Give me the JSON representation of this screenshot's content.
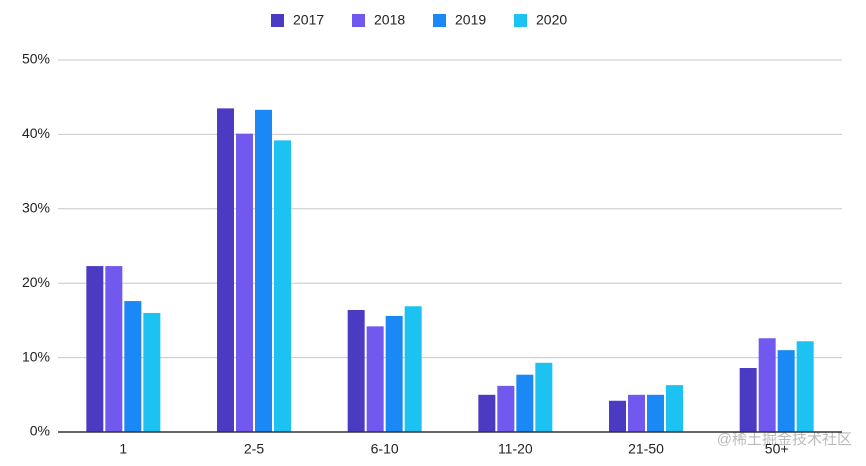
{
  "chart_data": {
    "type": "bar",
    "categories": [
      "1",
      "2-5",
      "6-10",
      "11-20",
      "21-50",
      "50+"
    ],
    "series": [
      {
        "name": "2017",
        "color": "#4b3bc2",
        "values": [
          22.3,
          43.5,
          16.4,
          5.0,
          4.2,
          8.6
        ]
      },
      {
        "name": "2018",
        "color": "#7159f0",
        "values": [
          22.3,
          40.1,
          14.2,
          6.2,
          5.0,
          12.6
        ]
      },
      {
        "name": "2019",
        "color": "#1a88f5",
        "values": [
          17.6,
          43.3,
          15.6,
          7.7,
          5.0,
          11.0
        ]
      },
      {
        "name": "2020",
        "color": "#1cc3f2",
        "values": [
          16.0,
          39.2,
          16.9,
          9.3,
          6.3,
          12.2
        ]
      }
    ],
    "ylim": [
      0,
      50
    ],
    "yticks": [
      {
        "value": 0,
        "label": "0%"
      },
      {
        "value": 10,
        "label": "10%"
      },
      {
        "value": 20,
        "label": "20%"
      },
      {
        "value": 30,
        "label": "30%"
      },
      {
        "value": 40,
        "label": "40%"
      },
      {
        "value": 50,
        "label": "50%"
      }
    ],
    "grid": true,
    "legend": "top"
  },
  "watermark": "@稀土掘金技术社区"
}
